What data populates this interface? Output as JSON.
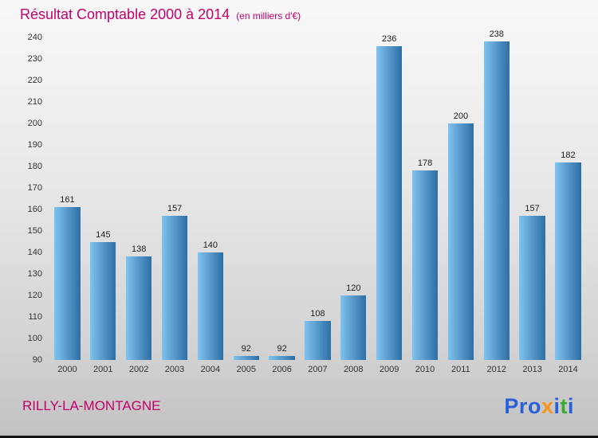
{
  "header": {
    "title": "Résultat Comptable 2000 à 2014",
    "subtitle": "(en milliers d'€)"
  },
  "footer": {
    "place": "RILLY-LA-MONTAGNE",
    "logo_letters": [
      {
        "ch": "P",
        "color": "#2b5fd9"
      },
      {
        "ch": "r",
        "color": "#2b5fd9"
      },
      {
        "ch": "o",
        "color": "#2b5fd9"
      },
      {
        "ch": "x",
        "color": "#f7941d"
      },
      {
        "ch": "i",
        "color": "#2b5fd9"
      },
      {
        "ch": "t",
        "color": "#3aaa35"
      },
      {
        "ch": "i",
        "color": "#2b5fd9"
      }
    ]
  },
  "colors": {
    "accent_magenta": "#c4006b",
    "bar_gradient_start": "#7fc3ef",
    "bar_gradient_end": "#2d6ea6",
    "tick_text": "#333333"
  },
  "chart_data": {
    "type": "bar",
    "title": "Résultat Comptable 2000 à 2014 (en milliers d'€)",
    "xlabel": "",
    "ylabel": "",
    "categories": [
      "2000",
      "2001",
      "2002",
      "2003",
      "2004",
      "2005",
      "2006",
      "2007",
      "2008",
      "2009",
      "2010",
      "2011",
      "2012",
      "2013",
      "2014"
    ],
    "values": [
      161,
      145,
      138,
      157,
      140,
      92,
      92,
      108,
      120,
      236,
      178,
      200,
      238,
      157,
      182
    ],
    "ylim": [
      90,
      240
    ],
    "ytick_step": 10,
    "grid": false,
    "legend": false,
    "bar_labels_shown": true
  }
}
